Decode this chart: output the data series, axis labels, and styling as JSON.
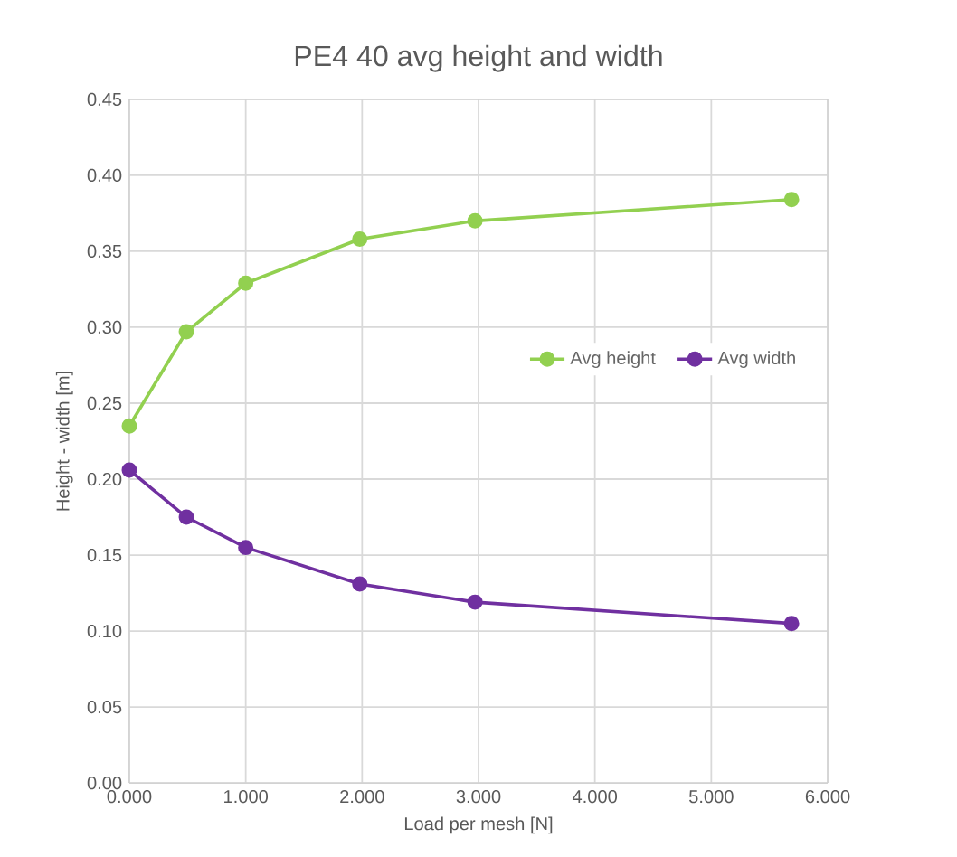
{
  "chart_data": {
    "type": "line",
    "title": "PE4 40 avg height and width",
    "xlabel": "Load per mesh [N]",
    "ylabel": "Height - width [m]",
    "x": [
      0,
      0.49,
      1.0,
      1.98,
      2.97,
      5.69
    ],
    "series": [
      {
        "name": "Avg height",
        "color": "#92d050",
        "values": [
          0.235,
          0.297,
          0.329,
          0.358,
          0.37,
          0.384
        ]
      },
      {
        "name": "Avg width",
        "color": "#7030a0",
        "values": [
          0.206,
          0.175,
          0.155,
          0.131,
          0.119,
          0.105
        ]
      }
    ],
    "xlim": [
      0,
      6
    ],
    "ylim": [
      0,
      0.45
    ],
    "xticks": [
      {
        "value": 0,
        "label": "0.000"
      },
      {
        "value": 1,
        "label": "1.000"
      },
      {
        "value": 2,
        "label": "2.000"
      },
      {
        "value": 3,
        "label": "3.000"
      },
      {
        "value": 4,
        "label": "4.000"
      },
      {
        "value": 5,
        "label": "5.000"
      },
      {
        "value": 6,
        "label": "6.000"
      }
    ],
    "yticks": [
      {
        "value": 0,
        "label": "0.00"
      },
      {
        "value": 0.05,
        "label": "0.05"
      },
      {
        "value": 0.1,
        "label": "0.10"
      },
      {
        "value": 0.15,
        "label": "0.15"
      },
      {
        "value": 0.2,
        "label": "0.20"
      },
      {
        "value": 0.25,
        "label": "0.25"
      },
      {
        "value": 0.3,
        "label": "0.30"
      },
      {
        "value": 0.35,
        "label": "0.35"
      },
      {
        "value": 0.4,
        "label": "0.40"
      },
      {
        "value": 0.45,
        "label": "0.45"
      }
    ],
    "grid": true,
    "legend": "right",
    "marker": "circle",
    "line_style": "solid"
  }
}
